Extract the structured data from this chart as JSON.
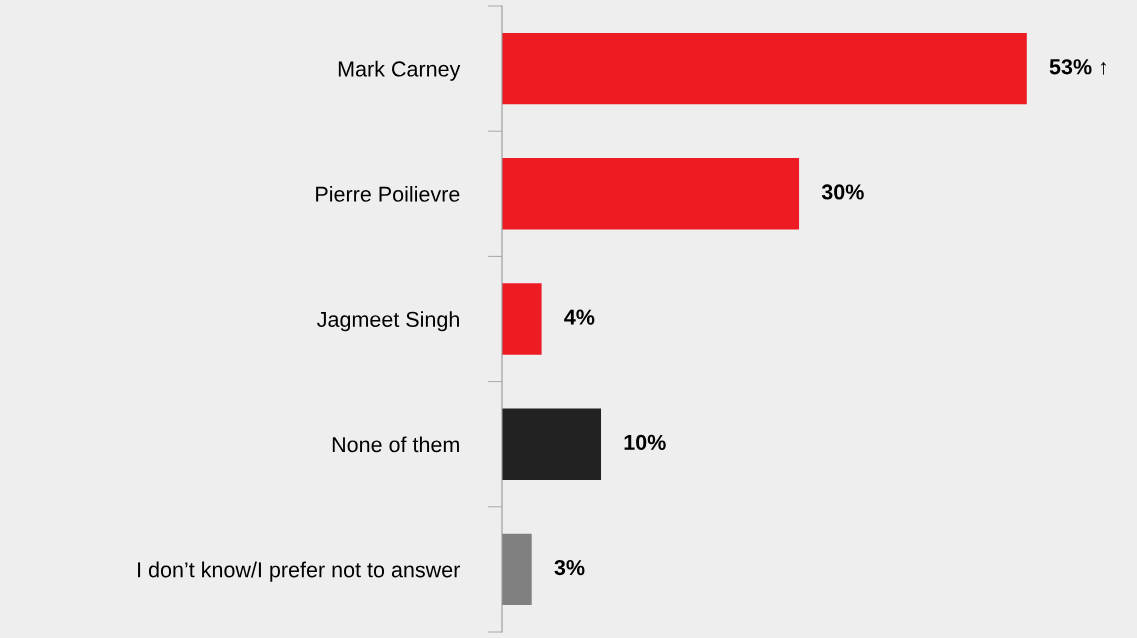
{
  "chart_data": {
    "type": "bar",
    "orientation": "horizontal",
    "categories": [
      "Mark Carney",
      "Pierre Poilievre",
      "Jagmeet Singh",
      "None of them",
      "I don’t know/I prefer not to answer"
    ],
    "values": [
      53,
      30,
      4,
      10,
      3
    ],
    "colors": [
      "#ed1c24",
      "#ed1c24",
      "#ed1c24",
      "#222222",
      "#808080"
    ],
    "value_labels": [
      "53% ↑",
      "30%",
      "4%",
      "10%",
      "3%"
    ],
    "grid": false,
    "legend": false
  }
}
